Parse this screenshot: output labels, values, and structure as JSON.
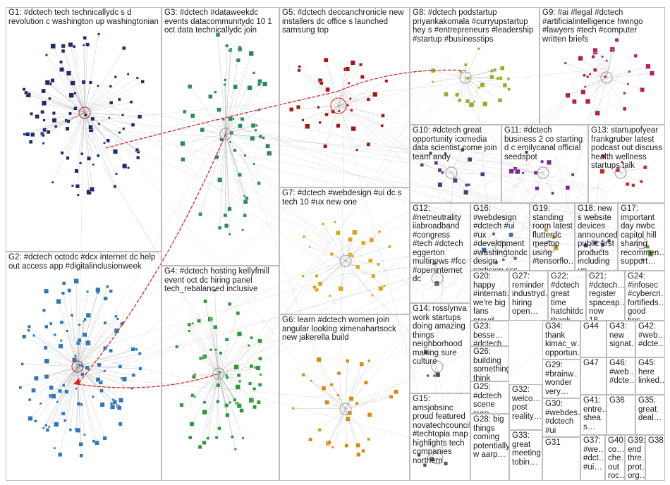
{
  "groups": [
    {
      "id": "G1",
      "label": "G1: #dctech tech technicallydc s d revolution c washington up washingtonian"
    },
    {
      "id": "G2",
      "label": "G2: #dctech octodc #dcx internet dc help out access app #digitalinclusionweek"
    },
    {
      "id": "G3",
      "label": "G3: #dctech #dataweekdc events datacommunitydc 10 1 oct data technicallydc join"
    },
    {
      "id": "G4",
      "label": "G4: #dctech hosting kellyfmill event oct dc hiring panel tech_rebalanced inclusive"
    },
    {
      "id": "G5",
      "label": "G5: #dctech deccanchronicle new installers dc office s launched samsung top"
    },
    {
      "id": "G6",
      "label": "G6: learn #dctech women join angular looking ximenahartsock new jakerella build"
    },
    {
      "id": "G7",
      "label": "G7: #dctech #webdesign #ui dc s tech 10 #ux new one"
    },
    {
      "id": "G8",
      "label": "G8: #dctech podstartup priyankakomala #curryupstartup hey s #entrepreneurs #leadership #startup #businesstips"
    },
    {
      "id": "G9",
      "label": "G9: #ai #legal #dctech #artificialintelligence hwingo #lawyers #tech #computer written briefs"
    },
    {
      "id": "G10",
      "label": "G10: #dctech great opportunity icxmedia data scientist come join team andy"
    },
    {
      "id": "G11",
      "label": "G11: #dctech business 2 co starting d c emilycanal official seedspot"
    },
    {
      "id": "G12",
      "label": "G12: #netneutrality iiabroadband #congress #tech #dctech eggerton multinews #fcc #openinternet dc"
    },
    {
      "id": "G13",
      "label": "G13: startupofyear frankgruber latest podcast out discuss health wellness startups talk"
    },
    {
      "id": "G14",
      "label": "G14: rosslynva work startups doing amazing things neighborhood making sure culture"
    },
    {
      "id": "G15",
      "label": "G15: amsjobsinc proud featured novatechcouncil #techtopia map highlights tech companies northern"
    },
    {
      "id": "G16",
      "label": "G16: #webdesign #dctech #ui #ux #development #washingtondc design cartisien css vs"
    },
    {
      "id": "G17",
      "label": "G17: important day nwbc capitol hill sharing recommen… support…"
    },
    {
      "id": "G18",
      "label": "G18: new s website devices announced public first products including up"
    },
    {
      "id": "G19",
      "label": "G19: standing room latest flutterdc meetup using #tensorflo…"
    },
    {
      "id": "G20",
      "label": "G20: happy #internati… we're big fans proud sponsors…"
    },
    {
      "id": "G21",
      "label": "G21: #dctech… register spaceap… now 18…"
    },
    {
      "id": "G22",
      "label": "G22: #dctech great time hatchitdc thank…"
    },
    {
      "id": "G23",
      "label": "G23: besse… #dctech"
    },
    {
      "id": "G24",
      "label": "G24: #infosec #cybercri… fortifieds… good tips…"
    },
    {
      "id": "G25",
      "label": "G25: #dctech scene sure knows…"
    },
    {
      "id": "G26",
      "label": "G26: building something think going really…"
    },
    {
      "id": "G27",
      "label": "G27: reminder industryd… hiring open…"
    },
    {
      "id": "G28",
      "label": "G28: big things coming potentially w aarp…"
    },
    {
      "id": "G29",
      "label": "G29: #brainw… wonder very…"
    },
    {
      "id": "G30",
      "label": "G30: #webdes… #dctech #ui #ux…"
    },
    {
      "id": "G31",
      "label": "G31"
    },
    {
      "id": "G32",
      "label": "G32: welco… post reality…"
    },
    {
      "id": "G33",
      "label": "G33: great meeting tobin…"
    },
    {
      "id": "G34",
      "label": "G34: thank kimac_w… opportun…"
    },
    {
      "id": "G35",
      "label": "G35: great deal…"
    },
    {
      "id": "G36",
      "label": "G36"
    },
    {
      "id": "G37",
      "label": "G37: #we… #dct… #ui…"
    },
    {
      "id": "G38",
      "label": "G38"
    },
    {
      "id": "G39",
      "label": "G39: end thre… prot… org…"
    },
    {
      "id": "G40",
      "label": "G40: co… che… out roc…"
    },
    {
      "id": "G41",
      "label": "G41: entre… shea s…"
    },
    {
      "id": "G42",
      "label": "G42: #web… #dcte…"
    },
    {
      "id": "G43",
      "label": "G43: new signat…"
    },
    {
      "id": "G44",
      "label": "G44"
    },
    {
      "id": "G45",
      "label": "G45: here linked…"
    },
    {
      "id": "G46",
      "label": "G46: #web… #dcte…"
    },
    {
      "id": "G47",
      "label": "G47"
    }
  ],
  "colors": {
    "G1": "#1f2a6b",
    "G2": "#2f78b5",
    "G3": "#2c8a5a",
    "G4": "#2e9a3a",
    "G5": "#a31818",
    "G6": "#d98a10",
    "G7": "#d9a81a",
    "G8": "#8fb02a",
    "G9": "#b0205a",
    "G10": "#5a3b7a",
    "G11": "#7a2a8a",
    "G13": "#c03030",
    "G16": "#3a6fb0",
    "G17": "#6a9a3a",
    "G18": "#3a3a9a",
    "G19": "#c0a020",
    "edge": "#9a9a9a",
    "bridge": "#e02020"
  }
}
